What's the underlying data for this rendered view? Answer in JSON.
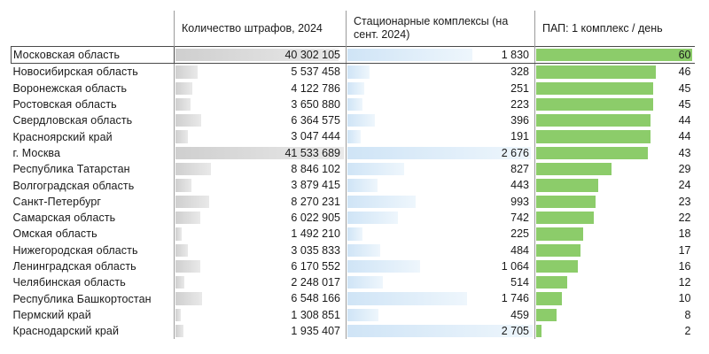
{
  "chart_data": {
    "type": "table",
    "columns": [
      "",
      "Количество штрафов, 2024",
      "Стационарные комплексы (на сент. 2024)",
      "ПАП: 1 комплекс / день"
    ],
    "rows": [
      {
        "region": "Московская область",
        "fines": "40 302 105",
        "fines_value": 40302105,
        "complexes": "1 830",
        "complexes_value": 1830,
        "pap": "60",
        "pap_value": 60
      },
      {
        "region": "Новосибирская область",
        "fines": "5 537 458",
        "fines_value": 5537458,
        "complexes": "328",
        "complexes_value": 328,
        "pap": "46",
        "pap_value": 46
      },
      {
        "region": "Воронежская область",
        "fines": "4 122 786",
        "fines_value": 4122786,
        "complexes": "251",
        "complexes_value": 251,
        "pap": "45",
        "pap_value": 45
      },
      {
        "region": "Ростовская область",
        "fines": "3 650 880",
        "fines_value": 3650880,
        "complexes": "223",
        "complexes_value": 223,
        "pap": "45",
        "pap_value": 45
      },
      {
        "region": "Свердловская область",
        "fines": "6 364 575",
        "fines_value": 6364575,
        "complexes": "396",
        "complexes_value": 396,
        "pap": "44",
        "pap_value": 44
      },
      {
        "region": "Красноярский край",
        "fines": "3 047 444",
        "fines_value": 3047444,
        "complexes": "191",
        "complexes_value": 191,
        "pap": "44",
        "pap_value": 44
      },
      {
        "region": "г. Москва",
        "fines": "41 533 689",
        "fines_value": 41533689,
        "complexes": "2 676",
        "complexes_value": 2676,
        "pap": "43",
        "pap_value": 43
      },
      {
        "region": "Республика Татарстан",
        "fines": "8 846 102",
        "fines_value": 8846102,
        "complexes": "827",
        "complexes_value": 827,
        "pap": "29",
        "pap_value": 29
      },
      {
        "region": "Волгоградская область",
        "fines": "3 879 415",
        "fines_value": 3879415,
        "complexes": "443",
        "complexes_value": 443,
        "pap": "24",
        "pap_value": 24
      },
      {
        "region": "Санкт-Петербург",
        "fines": "8 270 231",
        "fines_value": 8270231,
        "complexes": "993",
        "complexes_value": 993,
        "pap": "23",
        "pap_value": 23
      },
      {
        "region": "Самарская область",
        "fines": "6 022 905",
        "fines_value": 6022905,
        "complexes": "742",
        "complexes_value": 742,
        "pap": "22",
        "pap_value": 22
      },
      {
        "region": "Омская область",
        "fines": "1 492 210",
        "fines_value": 1492210,
        "complexes": "225",
        "complexes_value": 225,
        "pap": "18",
        "pap_value": 18
      },
      {
        "region": "Нижегородская область",
        "fines": "3 035 833",
        "fines_value": 3035833,
        "complexes": "484",
        "complexes_value": 484,
        "pap": "17",
        "pap_value": 17
      },
      {
        "region": "Ленинградская область",
        "fines": "6 170 552",
        "fines_value": 6170552,
        "complexes": "1 064",
        "complexes_value": 1064,
        "pap": "16",
        "pap_value": 16
      },
      {
        "region": "Челябинская область",
        "fines": "2 248 017",
        "fines_value": 2248017,
        "complexes": "514",
        "complexes_value": 514,
        "pap": "12",
        "pap_value": 12
      },
      {
        "region": "Республика Башкортостан",
        "fines": "6 548 166",
        "fines_value": 6548166,
        "complexes": "1 746",
        "complexes_value": 1746,
        "pap": "10",
        "pap_value": 10
      },
      {
        "region": "Пермский край",
        "fines": "1 308 851",
        "fines_value": 1308851,
        "complexes": "459",
        "complexes_value": 459,
        "pap": "8",
        "pap_value": 8
      },
      {
        "region": "Краснодарский край",
        "fines": "1 935 407",
        "fines_value": 1935407,
        "complexes": "2 705",
        "complexes_value": 2705,
        "pap": "2",
        "pap_value": 2
      }
    ],
    "bar_max": {
      "fines": 41533689,
      "complexes": 2705,
      "pap": 60
    },
    "colors": {
      "fines_bar": "#d4d4d4",
      "complexes_bar": "#dcebf8",
      "pap_bar": "#8ccc6a",
      "grid": "#9a9a9a"
    }
  }
}
